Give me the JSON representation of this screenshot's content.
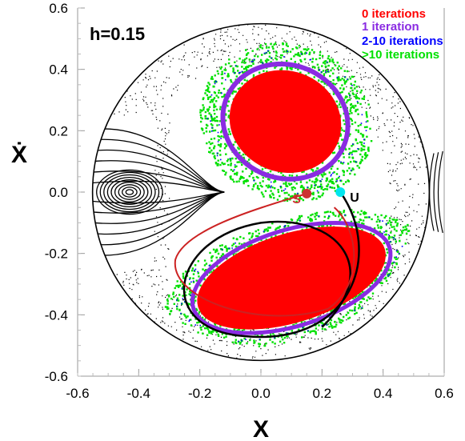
{
  "chart_data": {
    "type": "scatter",
    "annotation": "h=0.15",
    "xlabel": "X",
    "ylabel": "Ẋ",
    "xlim": [
      -0.6,
      0.6
    ],
    "ylim": [
      -0.6,
      0.6
    ],
    "xticks": [
      "-0.6",
      "-0.4",
      "-0.2",
      "0.0",
      "0.2",
      "0.4",
      "0.6"
    ],
    "yticks": [
      "0.6",
      "0.4",
      "0.2",
      "0.0",
      "-0.2",
      "-0.4",
      "-0.6"
    ],
    "legend": [
      {
        "label": "0 iterations",
        "color": "#ff0000"
      },
      {
        "label": "1 iteration",
        "color": "#8a2be2"
      },
      {
        "label": "2-10 iterations",
        "color": "#0000ff"
      },
      {
        "label": ">10 iterations",
        "color": "#00e000"
      }
    ],
    "legend_position": "top-right",
    "points": [
      {
        "label": "S",
        "x": 0.15,
        "y": -0.005,
        "color": "#cc3333"
      },
      {
        "label": "U",
        "x": 0.26,
        "y": 0.0,
        "color": "#000000"
      }
    ],
    "boundary_radius": 0.55,
    "grid": false
  }
}
